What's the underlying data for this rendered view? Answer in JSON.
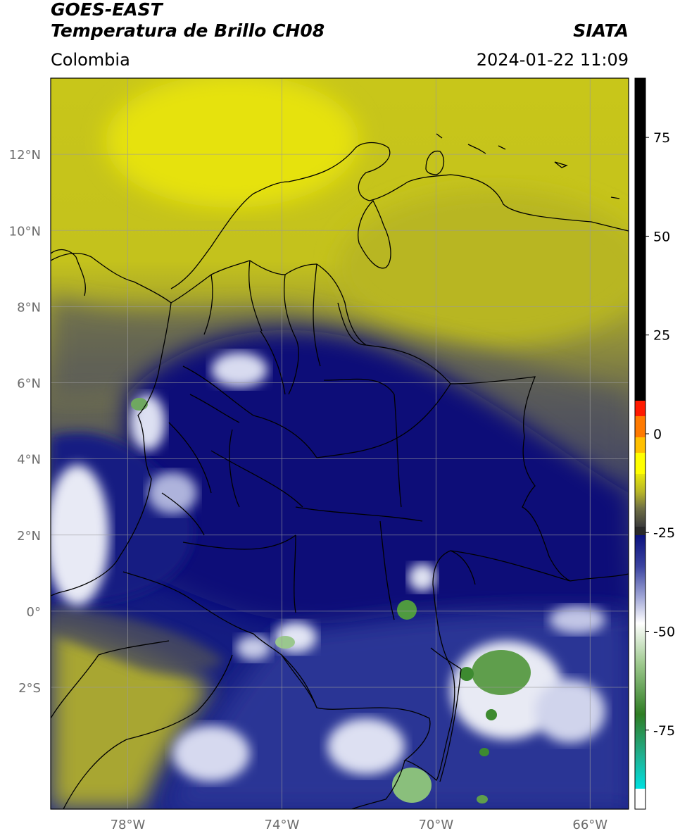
{
  "header": {
    "title_line1": "GOES-EAST",
    "title_line2": "Temperatura de Brillo CH08",
    "region": "Colombia",
    "organization": "SIATA",
    "timestamp": "2024-01-22 11:09"
  },
  "map": {
    "lon_range": [
      -80,
      -65
    ],
    "lat_range": [
      -5.2,
      14.0
    ],
    "lat_ticks": [
      {
        "value": 12,
        "label": "12°N"
      },
      {
        "value": 10,
        "label": "10°N"
      },
      {
        "value": 8,
        "label": "8°N"
      },
      {
        "value": 6,
        "label": "6°N"
      },
      {
        "value": 4,
        "label": "4°N"
      },
      {
        "value": 2,
        "label": "2°N"
      },
      {
        "value": 0,
        "label": "0°"
      },
      {
        "value": -2,
        "label": "2°S"
      }
    ],
    "lon_ticks": [
      {
        "value": -78,
        "label": "78°W"
      },
      {
        "value": -74,
        "label": "74°W"
      },
      {
        "value": -70,
        "label": "70°W"
      },
      {
        "value": -66,
        "label": "66°W"
      }
    ],
    "grid": true
  },
  "colorbar": {
    "range": [
      -95,
      90
    ],
    "ticks": [
      {
        "value": 75,
        "label": "75"
      },
      {
        "value": 50,
        "label": "50"
      },
      {
        "value": 25,
        "label": "25"
      },
      {
        "value": 0,
        "label": "0"
      },
      {
        "value": -25,
        "label": "-25"
      },
      {
        "value": -50,
        "label": "-50"
      },
      {
        "value": -75,
        "label": "-75"
      }
    ],
    "colors": {
      "warm": "#000000",
      "red": "#ff1a00",
      "orange": "#ff9900",
      "yellow": "#e8e80a",
      "olive": "#8f8f3a",
      "gray": "#5a5a5a",
      "navy": "#0b127e",
      "lightblue": "#c8cce8",
      "white": "#ffffff",
      "green": "#3a8a2a",
      "teal": "#20c0a0",
      "cyan": "#00e0e0"
    }
  }
}
